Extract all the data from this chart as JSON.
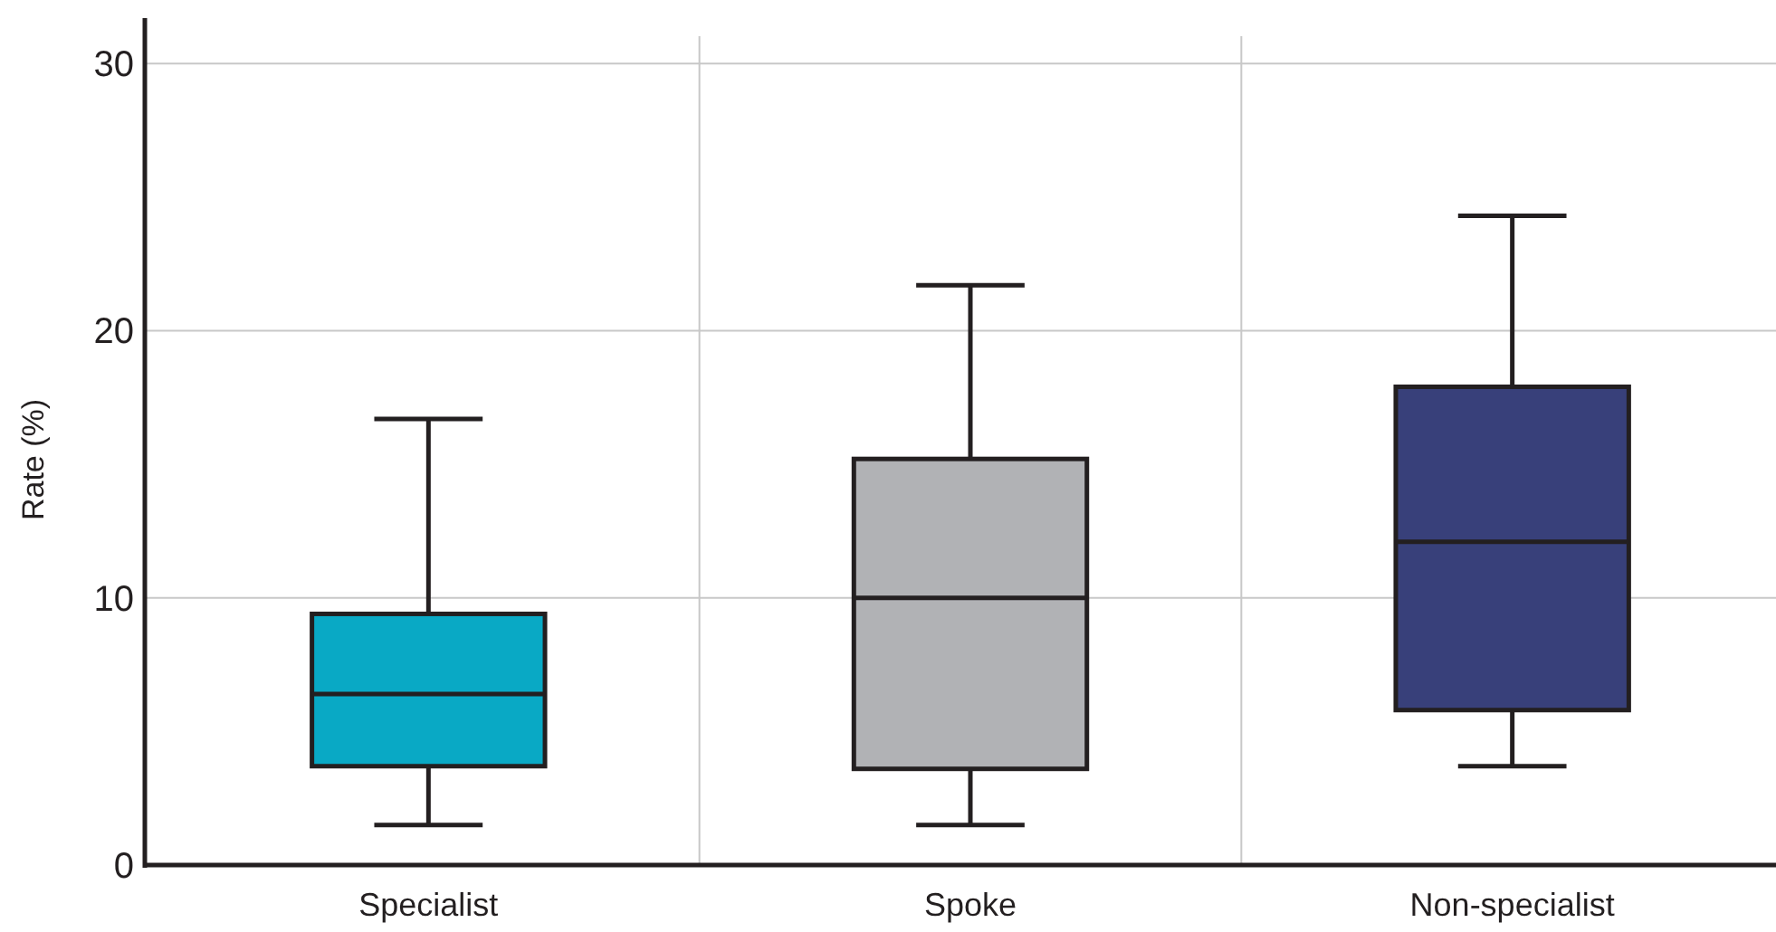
{
  "chart_data": {
    "type": "box",
    "ylabel": "Rate (%)",
    "categories": [
      "Specialist",
      "Spoke",
      "Non-specialist"
    ],
    "colors": [
      "#09a9c5",
      "#b1b2b5",
      "#38407a"
    ],
    "boxes": [
      {
        "low": 1.5,
        "q1": 3.7,
        "median": 6.4,
        "q3": 9.4,
        "high": 16.7
      },
      {
        "low": 1.5,
        "q1": 3.6,
        "median": 10.0,
        "q3": 15.2,
        "high": 21.7
      },
      {
        "low": 3.7,
        "q1": 5.8,
        "median": 12.1,
        "q3": 17.9,
        "high": 24.3
      }
    ],
    "ylim": [
      0,
      31.7
    ],
    "yticks": [
      0,
      10,
      20,
      30
    ],
    "grid": true
  }
}
